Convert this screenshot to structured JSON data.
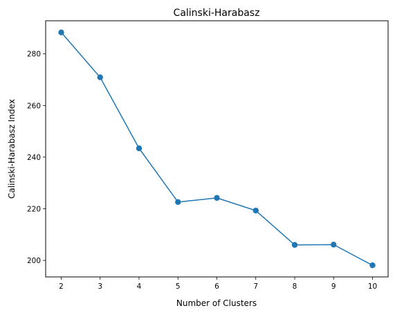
{
  "chart_data": {
    "type": "line",
    "title": "Calinski-Harabasz",
    "xlabel": "Number of Clusters",
    "ylabel": "Calinski-Harabasz Index",
    "x": [
      2,
      3,
      4,
      5,
      6,
      7,
      8,
      9,
      10
    ],
    "series": [
      {
        "values": [
          288.3,
          270.9,
          243.4,
          222.6,
          224.2,
          219.3,
          206.0,
          206.1,
          198.1
        ],
        "color": "#1f77b4",
        "marker": "circle"
      }
    ],
    "xticks": [
      "2",
      "3",
      "4",
      "5",
      "6",
      "7",
      "8",
      "9",
      "10"
    ],
    "yticks": [
      "200",
      "220",
      "240",
      "260",
      "280"
    ],
    "xlim": [
      1.6,
      10.4
    ],
    "ylim": [
      193.6,
      292.8
    ],
    "grid": false,
    "legend": false
  }
}
